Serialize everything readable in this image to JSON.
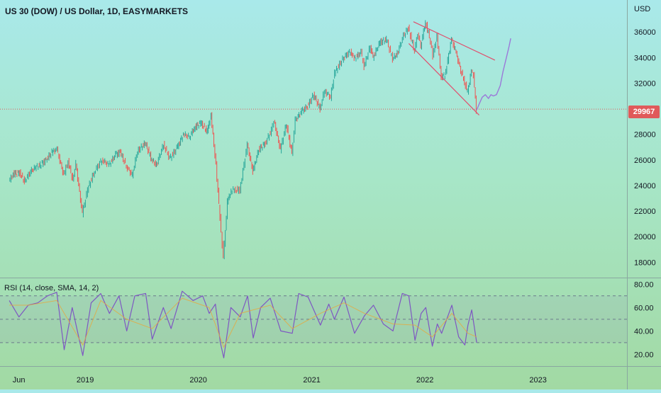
{
  "header": {
    "title": "US 30 (DOW) / US Dollar, 1D, EASYMARKETS",
    "currency": "USD"
  },
  "price_badge": "29967",
  "rsi": {
    "label": "RSI (14, close, SMA, 14, 2)"
  },
  "colors": {
    "up": "#26a69a",
    "down": "#ef5350",
    "trendline": "#e0506e",
    "projection": "#9b79d9",
    "rsi_line": "#7e57c2",
    "rsi_sma": "#e6a93d",
    "current_price_line": "#e05a5a"
  },
  "chart_data": [
    {
      "type": "line",
      "title": "US 30 (DOW) / US Dollar, 1D, EASYMARKETS",
      "ylabel": "USD",
      "ylim": [
        16800,
        38500
      ],
      "y_ticks": [
        18000,
        20000,
        22000,
        24000,
        26000,
        28000,
        30000,
        32000,
        34000,
        36000
      ],
      "y_tick_labels": [
        "18000",
        "20000",
        "22000",
        "24000",
        "26000",
        "28000",
        "30000",
        "32000",
        "34000",
        "36000"
      ],
      "x_ticks": [
        "2018-06",
        "2019-01",
        "2020-01",
        "2021-01",
        "2022-01",
        "2023-01"
      ],
      "x_tick_labels": [
        "Jun",
        "2019",
        "2020",
        "2021",
        "2022",
        "2023"
      ],
      "xlim": [
        "2018-04-01",
        "2023-10-15"
      ],
      "current_price": 29967,
      "series": [
        {
          "x": [
            "2018-05-01",
            "2018-05-15",
            "2018-06-05",
            "2018-06-20",
            "2018-07-10",
            "2018-07-25",
            "2018-08-10",
            "2018-08-29",
            "2018-09-20",
            "2018-10-03",
            "2018-10-25",
            "2018-11-08",
            "2018-11-23",
            "2018-12-03",
            "2018-12-24",
            "2019-01-10",
            "2019-02-01",
            "2019-02-25",
            "2019-03-20",
            "2019-04-10",
            "2019-04-25",
            "2019-05-15",
            "2019-06-03",
            "2019-06-20",
            "2019-07-15",
            "2019-08-05",
            "2019-08-20",
            "2019-09-12",
            "2019-10-02",
            "2019-10-25",
            "2019-11-15",
            "2019-12-05",
            "2019-12-20",
            "2020-01-10",
            "2020-01-31",
            "2020-02-12",
            "2020-02-28",
            "2020-03-12",
            "2020-03-23",
            "2020-04-05",
            "2020-04-17",
            "2020-05-01",
            "2020-05-15",
            "2020-06-08",
            "2020-06-26",
            "2020-07-15",
            "2020-08-05",
            "2020-08-25",
            "2020-09-02",
            "2020-09-23",
            "2020-10-12",
            "2020-10-30",
            "2020-11-10",
            "2020-12-01",
            "2020-12-20",
            "2021-01-08",
            "2021-01-29",
            "2021-02-12",
            "2021-03-04",
            "2021-03-17",
            "2021-04-15",
            "2021-05-07",
            "2021-05-19",
            "2021-06-10",
            "2021-06-20",
            "2021-07-10",
            "2021-07-19",
            "2021-08-10",
            "2021-08-31",
            "2021-09-20",
            "2021-10-05",
            "2021-10-25",
            "2021-11-10",
            "2021-11-30",
            "2021-12-10",
            "2021-12-20",
            "2022-01-04",
            "2022-01-20",
            "2022-01-28",
            "2022-02-10",
            "2022-02-24",
            "2022-03-08",
            "2022-03-29",
            "2022-04-10",
            "2022-04-28",
            "2022-05-10",
            "2022-05-20",
            "2022-06-01",
            "2022-06-08",
            "2022-06-17"
          ],
          "values": [
            24300,
            24900,
            25000,
            24300,
            25100,
            25400,
            25600,
            26000,
            26700,
            26800,
            24800,
            25900,
            24400,
            25700,
            21800,
            23700,
            25100,
            26000,
            25600,
            26400,
            26600,
            25500,
            24800,
            26700,
            27300,
            26000,
            25600,
            27200,
            26100,
            26900,
            28000,
            27800,
            28500,
            28900,
            28200,
            29500,
            25600,
            21500,
            18300,
            22700,
            23600,
            23700,
            23600,
            27200,
            25100,
            26800,
            27300,
            28300,
            29100,
            26800,
            28800,
            26500,
            29100,
            29800,
            30200,
            31100,
            30000,
            31400,
            30900,
            32800,
            34000,
            34500,
            33900,
            34400,
            33300,
            34900,
            34000,
            35200,
            35400,
            33900,
            34300,
            35700,
            36300,
            34500,
            35900,
            34900,
            36800,
            35300,
            34100,
            35700,
            32500,
            32600,
            35400,
            34600,
            33000,
            32100,
            31300,
            32900,
            32600,
            29900
          ],
          "name": ""
        }
      ],
      "annotations": {
        "trend_channel_upper": {
          "x": [
            "2021-11-25",
            "2022-08-15"
          ],
          "y": [
            36800,
            33800
          ]
        },
        "trend_channel_lower": {
          "x": [
            "2021-11-10",
            "2022-06-25"
          ],
          "y": [
            35100,
            29500
          ]
        },
        "projection": {
          "x": [
            "2022-06-17",
            "2022-06-24",
            "2022-07-05",
            "2022-07-15",
            "2022-07-25",
            "2022-08-02",
            "2022-08-10",
            "2022-08-20",
            "2022-09-01",
            "2022-09-10",
            "2022-09-20",
            "2022-09-30",
            "2022-10-05"
          ],
          "y": [
            29900,
            30300,
            30900,
            31100,
            30800,
            31100,
            31000,
            31100,
            31800,
            32900,
            33900,
            34900,
            35500
          ]
        }
      }
    },
    {
      "type": "line",
      "title": "RSI (14, close, SMA, 14, 2)",
      "ylim": [
        10,
        85
      ],
      "y_ticks": [
        20,
        40,
        60,
        80
      ],
      "y_tick_labels": [
        "20.00",
        "40.00",
        "60.00",
        "80.00"
      ],
      "bands": [
        30,
        50,
        70
      ],
      "series": [
        {
          "name": "",
          "x": [
            "2018-05-01",
            "2018-06-01",
            "2018-07-01",
            "2018-08-01",
            "2018-09-01",
            "2018-10-01",
            "2018-10-25",
            "2018-11-20",
            "2018-12-05",
            "2018-12-24",
            "2019-01-20",
            "2019-02-20",
            "2019-03-20",
            "2019-04-20",
            "2019-05-15",
            "2019-06-10",
            "2019-07-15",
            "2019-08-05",
            "2019-09-10",
            "2019-10-05",
            "2019-11-10",
            "2019-12-15",
            "2020-01-15",
            "2020-02-05",
            "2020-02-25",
            "2020-03-12",
            "2020-03-23",
            "2020-04-15",
            "2020-05-15",
            "2020-06-08",
            "2020-06-26",
            "2020-07-20",
            "2020-08-20",
            "2020-09-23",
            "2020-10-30",
            "2020-11-20",
            "2020-12-20",
            "2021-01-29",
            "2021-02-25",
            "2021-03-15",
            "2021-04-15",
            "2021-05-19",
            "2021-06-20",
            "2021-07-19",
            "2021-08-20",
            "2021-09-20",
            "2021-10-20",
            "2021-11-10",
            "2021-11-30",
            "2021-12-20",
            "2022-01-04",
            "2022-01-25",
            "2022-02-10",
            "2022-02-24",
            "2022-03-29",
            "2022-04-20",
            "2022-05-10",
            "2022-05-20",
            "2022-06-01",
            "2022-06-17"
          ],
          "values": [
            66,
            52,
            62,
            64,
            70,
            73,
            24,
            60,
            42,
            19,
            64,
            72,
            55,
            70,
            40,
            70,
            72,
            33,
            60,
            42,
            74,
            66,
            70,
            55,
            63,
            30,
            17,
            60,
            52,
            70,
            34,
            60,
            68,
            40,
            38,
            72,
            69,
            45,
            63,
            50,
            69,
            38,
            53,
            62,
            46,
            40,
            72,
            70,
            32,
            55,
            60,
            27,
            46,
            38,
            62,
            35,
            28,
            45,
            58,
            30
          ]
        },
        {
          "name": "",
          "x": [
            "2018-05-01",
            "2018-07-01",
            "2018-10-01",
            "2018-12-24",
            "2019-02-20",
            "2019-05-15",
            "2019-08-05",
            "2019-11-10",
            "2020-02-05",
            "2020-03-23",
            "2020-05-15",
            "2020-08-20",
            "2020-10-30",
            "2021-01-29",
            "2021-04-15",
            "2021-06-20",
            "2021-09-20",
            "2021-11-30",
            "2022-01-25",
            "2022-03-29",
            "2022-05-20",
            "2022-06-17"
          ],
          "values": [
            62,
            62,
            66,
            28,
            66,
            50,
            42,
            68,
            60,
            26,
            55,
            62,
            42,
            55,
            64,
            55,
            46,
            45,
            35,
            55,
            38,
            35
          ]
        }
      ]
    }
  ]
}
